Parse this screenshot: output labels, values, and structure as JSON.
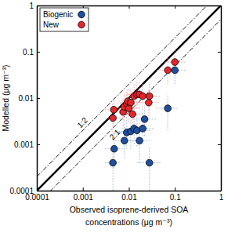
{
  "chart_data": {
    "type": "scatter",
    "x_label": [
      "Observed isoprene-derived SOA",
      "concentrations (μg m⁻³)"
    ],
    "y_label": "Modelled (μg m⁻³)",
    "log": true,
    "xlim": [
      0.0001,
      1
    ],
    "ylim": [
      0.0001,
      1
    ],
    "xticks": [
      0.0001,
      0.001,
      0.01,
      0.1,
      1
    ],
    "yticks": [
      0.0001,
      0.001,
      0.01,
      0.1,
      1
    ],
    "legend": "upper left",
    "reference_lines": [
      {
        "ratio": 1,
        "line_style": "solid"
      },
      {
        "ratio": 2,
        "line_style": "dashdot",
        "label": "1:2"
      },
      {
        "ratio": 0.5,
        "line_style": "dashdot",
        "label": "2:1"
      }
    ],
    "series": [
      {
        "name": "Biogenic",
        "color": "#1f4fa0",
        "marker": "circle",
        "x": [
          0.0045,
          0.0048,
          0.008,
          0.009,
          0.011,
          0.013,
          0.015,
          0.017,
          0.02,
          0.022,
          0.028,
          0.07,
          0.1
        ],
        "values": [
          0.0004,
          0.0008,
          0.0012,
          0.0018,
          0.0019,
          0.0022,
          0.002,
          0.0012,
          0.0022,
          0.0035,
          0.0004,
          0.006,
          0.04
        ],
        "x_range": [
          [
            0.003,
            0.007
          ],
          [
            0.003,
            0.008
          ],
          [
            0.005,
            0.013
          ],
          [
            0.005,
            0.016
          ],
          [
            0.006,
            0.02
          ],
          [
            0.007,
            0.025
          ],
          [
            0.008,
            0.03
          ],
          [
            0.009,
            0.03
          ],
          [
            0.012,
            0.035
          ],
          [
            0.012,
            0.04
          ],
          [
            0.015,
            0.05
          ],
          [
            0.04,
            0.12
          ],
          [
            0.06,
            0.17
          ]
        ],
        "y_range": [
          [
            0.0001,
            0.0008
          ],
          [
            0.0003,
            0.0015
          ],
          [
            0.0005,
            0.003
          ],
          [
            0.0008,
            0.004
          ],
          [
            0.0008,
            0.004
          ],
          [
            0.001,
            0.005
          ],
          [
            0.0009,
            0.0045
          ],
          [
            0.0004,
            0.003
          ],
          [
            0.001,
            0.005
          ],
          [
            0.0015,
            0.007
          ],
          [
            0.0001,
            0.0009
          ],
          [
            0.002,
            0.012
          ],
          [
            0.02,
            0.08
          ]
        ]
      },
      {
        "name": "New",
        "color": "#e3262b",
        "marker": "circle",
        "x": [
          0.0045,
          0.0047,
          0.0075,
          0.008,
          0.009,
          0.0095,
          0.01,
          0.011,
          0.012,
          0.013,
          0.015,
          0.017,
          0.02,
          0.027,
          0.028,
          0.07,
          0.1
        ],
        "values": [
          0.0037,
          0.0056,
          0.005,
          0.0065,
          0.0075,
          0.0085,
          0.006,
          0.008,
          0.0045,
          0.011,
          0.012,
          0.012,
          0.011,
          0.008,
          0.011,
          0.04,
          0.06
        ],
        "x_range": [
          [
            0.003,
            0.007
          ],
          [
            0.003,
            0.008
          ],
          [
            0.0045,
            0.013
          ],
          [
            0.005,
            0.014
          ],
          [
            0.0055,
            0.015
          ],
          [
            0.006,
            0.016
          ],
          [
            0.006,
            0.017
          ],
          [
            0.0065,
            0.019
          ],
          [
            0.007,
            0.02
          ],
          [
            0.008,
            0.022
          ],
          [
            0.009,
            0.026
          ],
          [
            0.01,
            0.029
          ],
          [
            0.012,
            0.034
          ],
          [
            0.016,
            0.046
          ],
          [
            0.017,
            0.048
          ],
          [
            0.04,
            0.12
          ],
          [
            0.06,
            0.17
          ]
        ],
        "y_range": [
          [
            0.0018,
            0.0075
          ],
          [
            0.0028,
            0.011
          ],
          [
            0.0025,
            0.01
          ],
          [
            0.0032,
            0.013
          ],
          [
            0.0037,
            0.015
          ],
          [
            0.0042,
            0.017
          ],
          [
            0.003,
            0.012
          ],
          [
            0.004,
            0.016
          ],
          [
            0.0022,
            0.009
          ],
          [
            0.0055,
            0.022
          ],
          [
            0.006,
            0.024
          ],
          [
            0.006,
            0.024
          ],
          [
            0.0055,
            0.022
          ],
          [
            0.004,
            0.016
          ],
          [
            0.0055,
            0.022
          ],
          [
            0.02,
            0.08
          ],
          [
            0.03,
            0.12
          ]
        ]
      }
    ]
  }
}
